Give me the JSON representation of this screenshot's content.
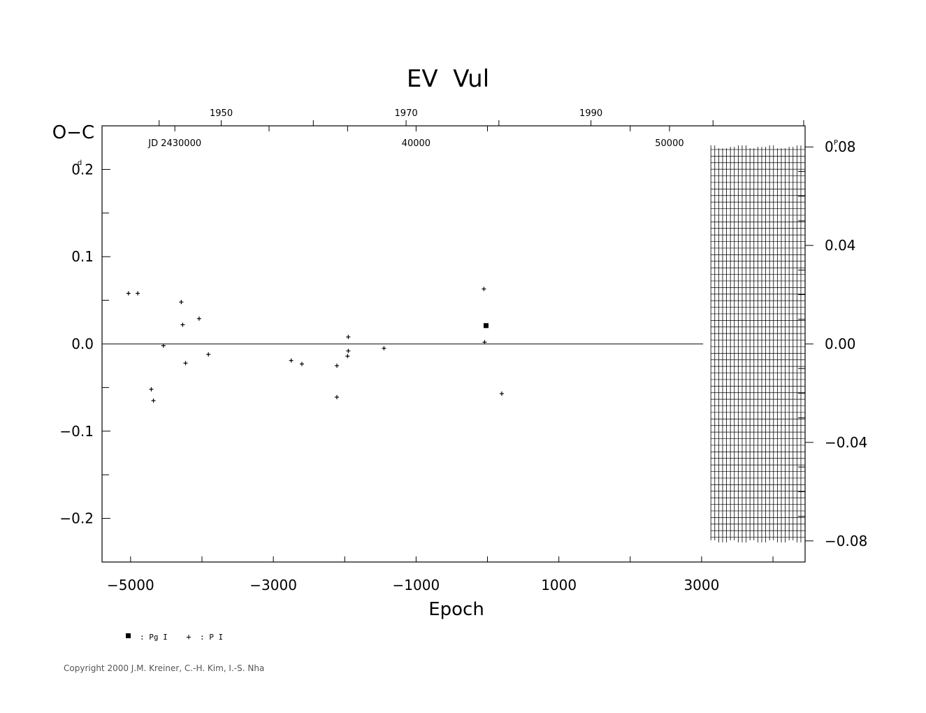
{
  "chart_data": {
    "type": "scatter",
    "title": "EV  Vul",
    "xlabel": "Epoch",
    "ylabel": "O−C",
    "ylabel_unit": "d",
    "right_unit": "P",
    "xlim": [
      -5400,
      4450
    ],
    "ylim": [
      -0.25,
      0.25
    ],
    "x_ticks": [
      {
        "value": -5000,
        "label": "−5000"
      },
      {
        "value": -3000,
        "label": "−3000"
      },
      {
        "value": -1000,
        "label": "−1000"
      },
      {
        "value": 1000,
        "label": "1000"
      },
      {
        "value": 3000,
        "label": "3000"
      }
    ],
    "x_minor_ticks": [
      -4000,
      -2000,
      0,
      2000,
      4000
    ],
    "y_ticks": [
      {
        "value": 0.2,
        "label": "0.2"
      },
      {
        "value": 0.1,
        "label": "0.1"
      },
      {
        "value": 0.0,
        "label": "0.0"
      },
      {
        "value": -0.1,
        "label": "−0.1"
      },
      {
        "value": -0.2,
        "label": "−0.2"
      }
    ],
    "y_minor_ticks": [
      0.15,
      0.05,
      -0.05,
      -0.15
    ],
    "right_ticks": [
      {
        "value": 0.2258,
        "label": "0.08"
      },
      {
        "value": 0.1129,
        "label": "0.04"
      },
      {
        "value": 0.0,
        "label": "0.00"
      },
      {
        "value": -0.1129,
        "label": "−0.04"
      },
      {
        "value": -0.2258,
        "label": "−0.08"
      }
    ],
    "right_minor_ticks": [
      0.1976,
      0.1694,
      0.1411,
      0.0847,
      0.0565,
      0.0282,
      -0.0282,
      -0.0565,
      -0.0847,
      -0.1411,
      -0.1694,
      -0.1976
    ],
    "top_year_ticks": [
      {
        "epoch": -3730,
        "label": "1950"
      },
      {
        "epoch": -1140,
        "label": "1970"
      },
      {
        "epoch": 1450,
        "label": "1990"
      }
    ],
    "top_year_minor": [
      -4600,
      -2440,
      160,
      3160,
      4430
    ],
    "top_jd_ticks": [
      {
        "epoch": -4380,
        "label": "JD  2430000"
      },
      {
        "epoch": -1000,
        "label": "40000"
      },
      {
        "epoch": 2550,
        "label": "50000"
      }
    ],
    "top_jd_minor": [
      -3060,
      -1960,
      0,
      2000
    ],
    "hatch_region": {
      "x_from": 3120,
      "x_to": 4450,
      "y_from": -0.226,
      "y_to": 0.226
    },
    "series": [
      {
        "name": "Pg I",
        "marker": "square",
        "points": [
          {
            "x": -20,
            "y": 0.021
          }
        ]
      },
      {
        "name": "P I",
        "marker": "plus",
        "points": [
          {
            "x": -5030,
            "y": 0.058
          },
          {
            "x": -4900,
            "y": 0.058
          },
          {
            "x": -4710,
            "y": -0.052
          },
          {
            "x": -4680,
            "y": -0.065
          },
          {
            "x": -4540,
            "y": -0.002
          },
          {
            "x": -4290,
            "y": 0.048
          },
          {
            "x": -4270,
            "y": 0.022
          },
          {
            "x": -4230,
            "y": -0.022
          },
          {
            "x": -4040,
            "y": 0.029
          },
          {
            "x": -3910,
            "y": -0.012
          },
          {
            "x": -2750,
            "y": -0.019
          },
          {
            "x": -2600,
            "y": -0.023
          },
          {
            "x": -2110,
            "y": -0.025
          },
          {
            "x": -2110,
            "y": -0.061
          },
          {
            "x": -1950,
            "y": 0.008
          },
          {
            "x": -1950,
            "y": -0.008
          },
          {
            "x": -1960,
            "y": -0.014
          },
          {
            "x": -1450,
            "y": -0.005
          },
          {
            "x": -50,
            "y": 0.063
          },
          {
            "x": -40,
            "y": 0.002
          },
          {
            "x": 200,
            "y": -0.057
          }
        ]
      }
    ],
    "legend": [
      {
        "marker": "square",
        "label": ": Pg I"
      },
      {
        "marker": "plus",
        "label": ": P I"
      }
    ]
  },
  "footer": {
    "copyright": "Copyright 2000 J.M. Kreiner, C.-H. Kim, I.-S. Nha"
  }
}
